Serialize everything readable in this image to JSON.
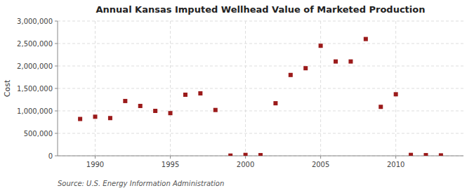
{
  "chart_data": {
    "type": "scatter",
    "title": "Annual Kansas Imputed Wellhead Value of Marketed Production",
    "ylabel": "Cost",
    "source": "Source: U.S. Energy Information Administration",
    "x": [
      1989,
      1990,
      1991,
      1992,
      1993,
      1994,
      1995,
      1996,
      1997,
      1998,
      1999,
      2000,
      2001,
      2002,
      2003,
      2004,
      2005,
      2006,
      2007,
      2008,
      2009,
      2010,
      2011,
      2012,
      2013
    ],
    "values": [
      820000,
      870000,
      840000,
      1220000,
      1110000,
      1000000,
      950000,
      1360000,
      1390000,
      1020000,
      5000,
      20000,
      15000,
      1170000,
      1800000,
      1950000,
      2450000,
      2100000,
      2100000,
      2600000,
      1090000,
      1370000,
      20000,
      15000,
      10000
    ],
    "color": "#9b1a1a",
    "marker": "square",
    "xlim": [
      1987.5,
      2014.5
    ],
    "ylim": [
      0,
      3000000
    ],
    "xticks": [
      1990,
      1995,
      2000,
      2005,
      2010
    ],
    "yticks": [
      0,
      {
        "value": 500000,
        "label": "500,000"
      },
      {
        "value": 1000000,
        "label": "1,000,000"
      },
      {
        "value": 1500000,
        "label": "1,500,000"
      },
      {
        "value": 2000000,
        "label": "2,000,000"
      },
      {
        "value": 2500000,
        "label": "2,500,000"
      },
      {
        "value": 3000000,
        "label": "3,000,000"
      }
    ],
    "grid": true
  }
}
